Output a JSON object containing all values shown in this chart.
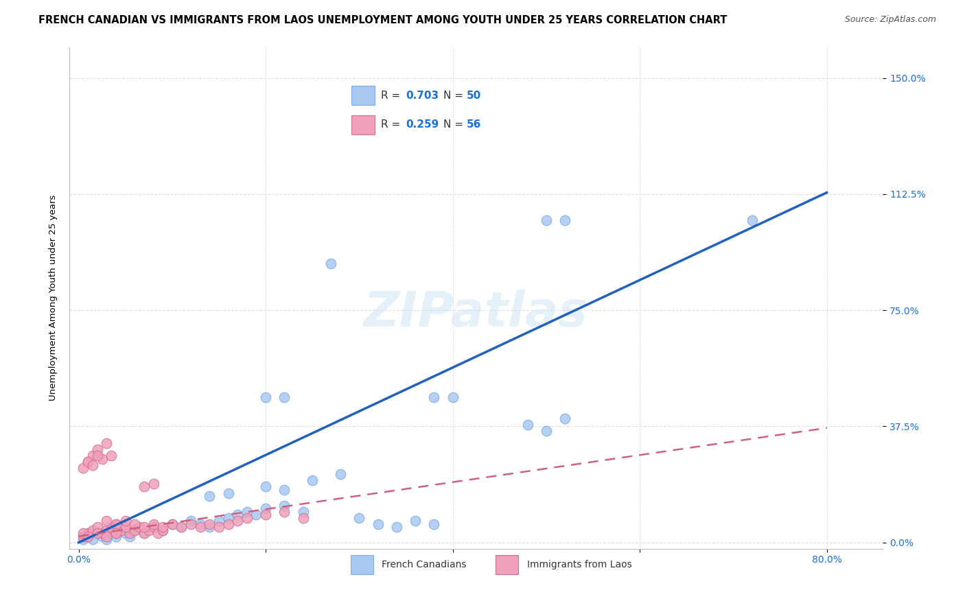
{
  "title": "FRENCH CANADIAN VS IMMIGRANTS FROM LAOS UNEMPLOYMENT AMONG YOUTH UNDER 25 YEARS CORRELATION CHART",
  "source": "Source: ZipAtlas.com",
  "ylabel": "Unemployment Among Youth under 25 years",
  "ytick_labels": [
    "0.0%",
    "37.5%",
    "75.0%",
    "112.5%",
    "150.0%"
  ],
  "ytick_values": [
    0.0,
    0.375,
    0.75,
    1.125,
    1.5
  ],
  "xtick_values": [
    0.0,
    0.2,
    0.4,
    0.6,
    0.8
  ],
  "xtick_labels": [
    "0.0%",
    "",
    "",
    "",
    "80.0%"
  ],
  "xlim": [
    -0.01,
    0.86
  ],
  "ylim": [
    -0.02,
    1.6
  ],
  "blue_color": "#a8c8f0",
  "blue_edge_color": "#7aaae0",
  "blue_line_color": "#2060c0",
  "pink_color": "#f0a0b8",
  "pink_edge_color": "#d07090",
  "pink_line_color": "#d06080",
  "blue_scatter_x": [
    0.005,
    0.01,
    0.015,
    0.02,
    0.025,
    0.03,
    0.035,
    0.04,
    0.045,
    0.05,
    0.055,
    0.06,
    0.07,
    0.08,
    0.09,
    0.1,
    0.11,
    0.12,
    0.13,
    0.14,
    0.15,
    0.16,
    0.17,
    0.18,
    0.19,
    0.2,
    0.22,
    0.24,
    0.14,
    0.16,
    0.2,
    0.22,
    0.25,
    0.28,
    0.2,
    0.22,
    0.38,
    0.4,
    0.48,
    0.5,
    0.52,
    0.27,
    0.5,
    0.52,
    0.72,
    0.3,
    0.32,
    0.34,
    0.36,
    0.38
  ],
  "blue_scatter_y": [
    0.01,
    0.02,
    0.01,
    0.03,
    0.02,
    0.01,
    0.03,
    0.02,
    0.04,
    0.03,
    0.02,
    0.04,
    0.03,
    0.05,
    0.04,
    0.06,
    0.05,
    0.07,
    0.06,
    0.05,
    0.07,
    0.08,
    0.09,
    0.1,
    0.09,
    0.11,
    0.12,
    0.1,
    0.15,
    0.16,
    0.18,
    0.17,
    0.2,
    0.22,
    0.47,
    0.47,
    0.47,
    0.47,
    0.38,
    0.36,
    0.4,
    0.9,
    1.04,
    1.04,
    1.04,
    0.08,
    0.06,
    0.05,
    0.07,
    0.06
  ],
  "pink_scatter_x": [
    0.005,
    0.01,
    0.015,
    0.02,
    0.025,
    0.03,
    0.035,
    0.04,
    0.045,
    0.05,
    0.055,
    0.06,
    0.065,
    0.07,
    0.075,
    0.08,
    0.085,
    0.09,
    0.01,
    0.015,
    0.02,
    0.025,
    0.03,
    0.035,
    0.005,
    0.01,
    0.015,
    0.02,
    0.04,
    0.05,
    0.06,
    0.07,
    0.03,
    0.04,
    0.05,
    0.08,
    0.09,
    0.1,
    0.11,
    0.12,
    0.13,
    0.14,
    0.15,
    0.16,
    0.07,
    0.08,
    0.17,
    0.18,
    0.2,
    0.22,
    0.24,
    0.005,
    0.01,
    0.02,
    0.03,
    0.04
  ],
  "pink_scatter_y": [
    0.02,
    0.03,
    0.04,
    0.05,
    0.03,
    0.04,
    0.05,
    0.03,
    0.04,
    0.05,
    0.03,
    0.04,
    0.05,
    0.03,
    0.04,
    0.05,
    0.03,
    0.04,
    0.26,
    0.28,
    0.3,
    0.27,
    0.32,
    0.28,
    0.24,
    0.26,
    0.25,
    0.28,
    0.06,
    0.05,
    0.06,
    0.05,
    0.07,
    0.06,
    0.07,
    0.06,
    0.05,
    0.06,
    0.05,
    0.06,
    0.05,
    0.06,
    0.05,
    0.06,
    0.18,
    0.19,
    0.07,
    0.08,
    0.09,
    0.1,
    0.08,
    0.03,
    0.02,
    0.03,
    0.02,
    0.03
  ],
  "blue_line_x": [
    0.0,
    0.8
  ],
  "blue_line_y": [
    0.0,
    1.13
  ],
  "pink_line_x": [
    0.0,
    0.8
  ],
  "pink_line_y": [
    0.02,
    0.37
  ],
  "legend_label_blue": "French Canadians",
  "legend_label_pink": "Immigrants from Laos",
  "title_fontsize": 10.5,
  "source_fontsize": 9,
  "axis_label_fontsize": 9.5,
  "tick_fontsize": 10,
  "watermark_fontsize": 52,
  "watermark_color": "#cce4f5",
  "watermark_alpha": 0.5
}
